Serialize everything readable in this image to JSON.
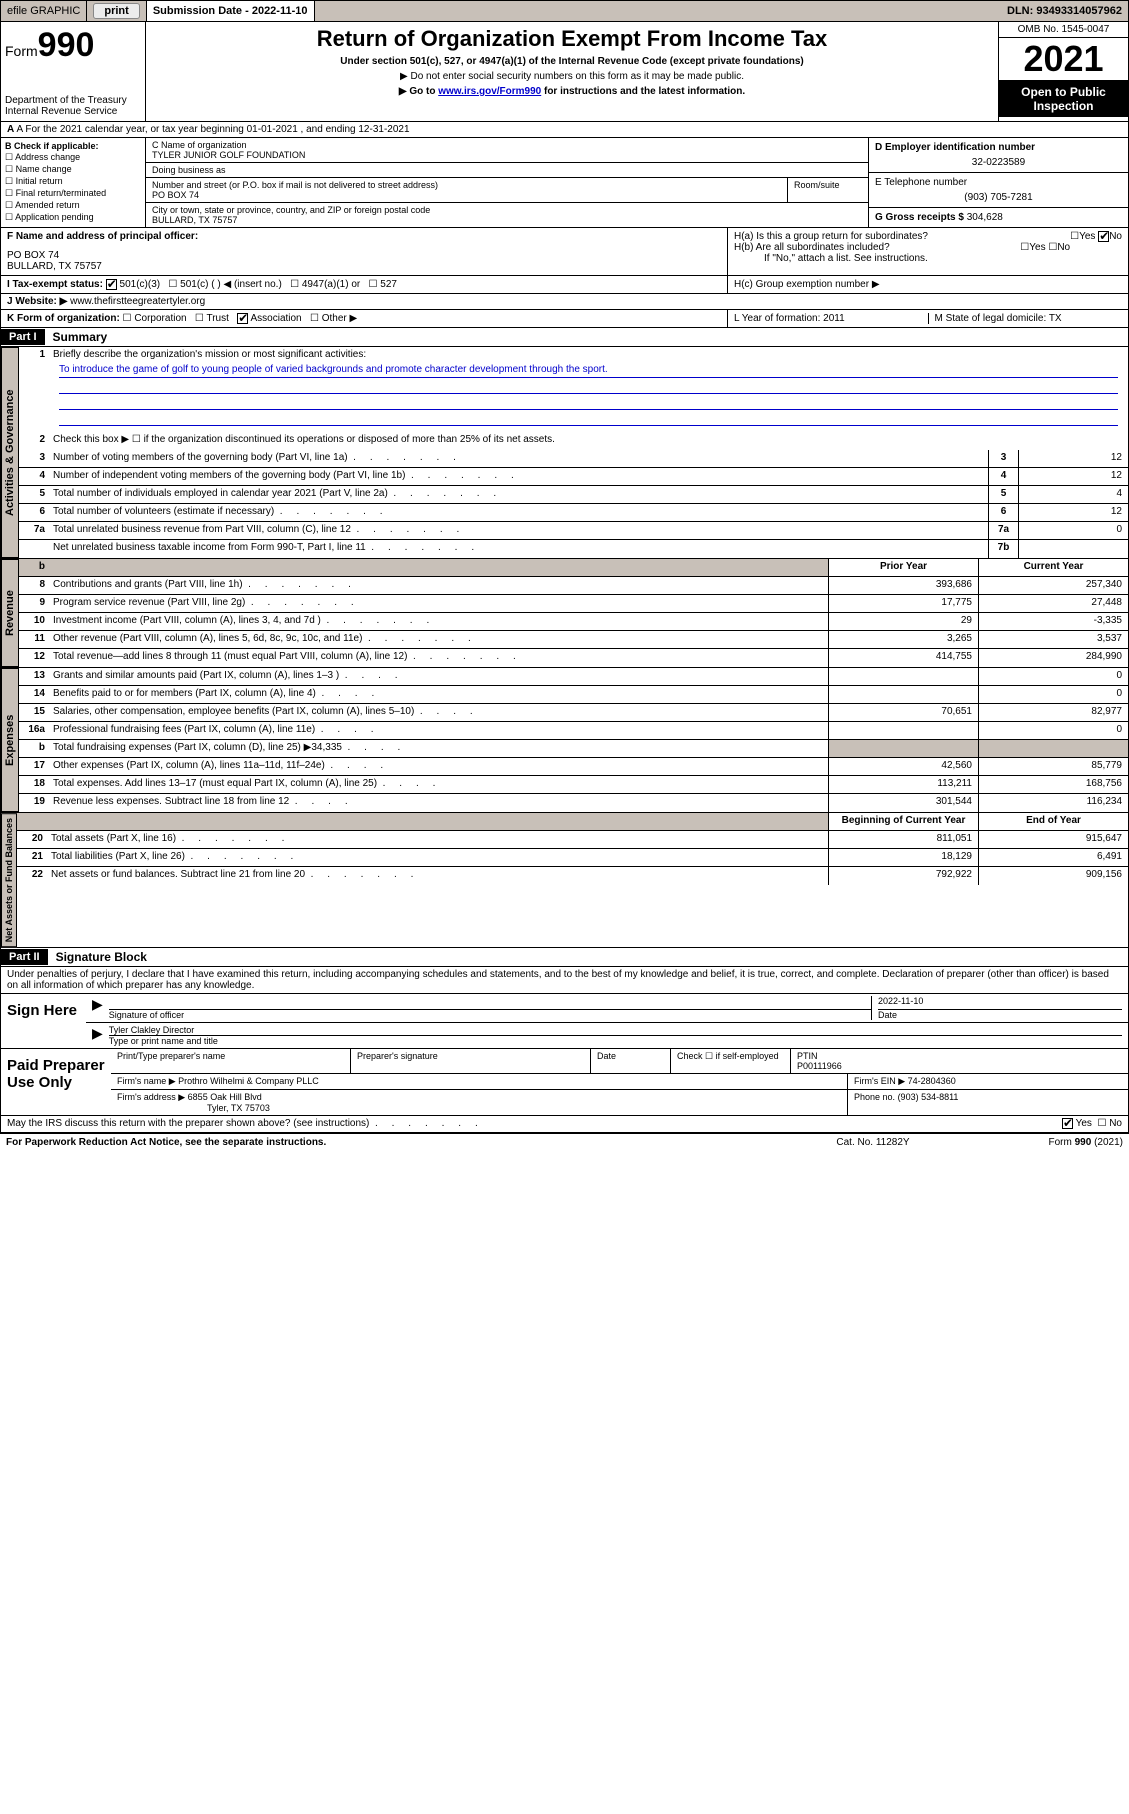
{
  "topbar": {
    "efile": "efile GRAPHIC",
    "print": "print",
    "submission_label": "Submission Date - 2022-11-10",
    "dln": "DLN: 93493314057962"
  },
  "header": {
    "form_label": "Form",
    "form_number": "990",
    "dept": "Department of the Treasury",
    "irs": "Internal Revenue Service",
    "title": "Return of Organization Exempt From Income Tax",
    "subtitle": "Under section 501(c), 527, or 4947(a)(1) of the Internal Revenue Code (except private foundations)",
    "note1": "▶ Do not enter social security numbers on this form as it may be made public.",
    "note2_pre": "▶ Go to ",
    "note2_link": "www.irs.gov/Form990",
    "note2_post": " for instructions and the latest information.",
    "omb": "OMB No. 1545-0047",
    "year": "2021",
    "open": "Open to Public Inspection"
  },
  "row_a": "A For the 2021 calendar year, or tax year beginning 01-01-2021   , and ending 12-31-2021",
  "section_b": {
    "label": "B Check if applicable:",
    "items": [
      "Address change",
      "Name change",
      "Initial return",
      "Final return/terminated",
      "Amended return",
      "Application pending"
    ]
  },
  "section_c": {
    "name_label": "C Name of organization",
    "name": "TYLER JUNIOR GOLF FOUNDATION",
    "dba_label": "Doing business as",
    "dba": "",
    "addr_label": "Number and street (or P.O. box if mail is not delivered to street address)",
    "addr": "PO BOX 74",
    "room_label": "Room/suite",
    "city_label": "City or town, state or province, country, and ZIP or foreign postal code",
    "city": "BULLARD, TX  75757"
  },
  "section_d": {
    "label": "D Employer identification number",
    "value": "32-0223589"
  },
  "section_e": {
    "label": "E Telephone number",
    "value": "(903) 705-7281"
  },
  "section_g": {
    "label": "G Gross receipts $",
    "value": "304,628"
  },
  "section_f": {
    "label": "F  Name and address of principal officer:",
    "addr1": "PO BOX 74",
    "addr2": "BULLARD, TX  75757"
  },
  "section_h": {
    "a": "H(a)  Is this a group return for subordinates?",
    "b": "H(b)  Are all subordinates included?",
    "b_note": "If \"No,\" attach a list. See instructions.",
    "c": "H(c)  Group exemption number ▶",
    "yes": "Yes",
    "no": "No"
  },
  "section_i": {
    "label": "I   Tax-exempt status:",
    "opts": [
      "501(c)(3)",
      "501(c) (   ) ◀ (insert no.)",
      "4947(a)(1) or",
      "527"
    ]
  },
  "section_j": {
    "label": "J   Website: ▶",
    "value": " www.thefirstteegreatertyler.org"
  },
  "section_k": {
    "label": "K Form of organization:",
    "opts": [
      "Corporation",
      "Trust",
      "Association",
      "Other ▶"
    ]
  },
  "section_l": {
    "label": "L Year of formation: 2011"
  },
  "section_m": {
    "label": "M State of legal domicile: TX"
  },
  "part1": {
    "hdr": "Part I",
    "title": "Summary",
    "tab_gov": "Activities & Governance",
    "tab_rev": "Revenue",
    "tab_exp": "Expenses",
    "tab_net": "Net Assets or Fund Balances",
    "l1_label": "Briefly describe the organization's mission or most significant activities:",
    "l1_text": "To introduce the game of golf to young people of varied backgrounds and promote character development through the sport.",
    "l2": "Check this box ▶ ☐  if the organization discontinued its operations or disposed of more than 25% of its net assets.",
    "lines_gov": [
      {
        "n": "3",
        "d": "Number of voting members of the governing body (Part VI, line 1a)",
        "box": "3",
        "v": "12"
      },
      {
        "n": "4",
        "d": "Number of independent voting members of the governing body (Part VI, line 1b)",
        "box": "4",
        "v": "12"
      },
      {
        "n": "5",
        "d": "Total number of individuals employed in calendar year 2021 (Part V, line 2a)",
        "box": "5",
        "v": "4"
      },
      {
        "n": "6",
        "d": "Total number of volunteers (estimate if necessary)",
        "box": "6",
        "v": "12"
      },
      {
        "n": "7a",
        "d": "Total unrelated business revenue from Part VIII, column (C), line 12",
        "box": "7a",
        "v": "0"
      },
      {
        "n": "",
        "d": "Net unrelated business taxable income from Form 990-T, Part I, line 11",
        "box": "7b",
        "v": ""
      }
    ],
    "col_prior": "Prior Year",
    "col_current": "Current Year",
    "col_begin": "Beginning of Current Year",
    "col_end": "End of Year",
    "lines_rev": [
      {
        "n": "8",
        "d": "Contributions and grants (Part VIII, line 1h)",
        "p": "393,686",
        "c": "257,340"
      },
      {
        "n": "9",
        "d": "Program service revenue (Part VIII, line 2g)",
        "p": "17,775",
        "c": "27,448"
      },
      {
        "n": "10",
        "d": "Investment income (Part VIII, column (A), lines 3, 4, and 7d )",
        "p": "29",
        "c": "-3,335"
      },
      {
        "n": "11",
        "d": "Other revenue (Part VIII, column (A), lines 5, 6d, 8c, 9c, 10c, and 11e)",
        "p": "3,265",
        "c": "3,537"
      },
      {
        "n": "12",
        "d": "Total revenue—add lines 8 through 11 (must equal Part VIII, column (A), line 12)",
        "p": "414,755",
        "c": "284,990"
      }
    ],
    "lines_exp": [
      {
        "n": "13",
        "d": "Grants and similar amounts paid (Part IX, column (A), lines 1–3 )",
        "p": "",
        "c": "0"
      },
      {
        "n": "14",
        "d": "Benefits paid to or for members (Part IX, column (A), line 4)",
        "p": "",
        "c": "0"
      },
      {
        "n": "15",
        "d": "Salaries, other compensation, employee benefits (Part IX, column (A), lines 5–10)",
        "p": "70,651",
        "c": "82,977"
      },
      {
        "n": "16a",
        "d": "Professional fundraising fees (Part IX, column (A), line 11e)",
        "p": "",
        "c": "0"
      },
      {
        "n": "b",
        "d": "Total fundraising expenses (Part IX, column (D), line 25) ▶34,335",
        "p": "shade",
        "c": "shade"
      },
      {
        "n": "17",
        "d": "Other expenses (Part IX, column (A), lines 11a–11d, 11f–24e)",
        "p": "42,560",
        "c": "85,779"
      },
      {
        "n": "18",
        "d": "Total expenses. Add lines 13–17 (must equal Part IX, column (A), line 25)",
        "p": "113,211",
        "c": "168,756"
      },
      {
        "n": "19",
        "d": "Revenue less expenses. Subtract line 18 from line 12",
        "p": "301,544",
        "c": "116,234"
      }
    ],
    "lines_net": [
      {
        "n": "20",
        "d": "Total assets (Part X, line 16)",
        "p": "811,051",
        "c": "915,647"
      },
      {
        "n": "21",
        "d": "Total liabilities (Part X, line 26)",
        "p": "18,129",
        "c": "6,491"
      },
      {
        "n": "22",
        "d": "Net assets or fund balances. Subtract line 21 from line 20",
        "p": "792,922",
        "c": "909,156"
      }
    ]
  },
  "part2": {
    "hdr": "Part II",
    "title": "Signature Block",
    "perjury": "Under penalties of perjury, I declare that I have examined this return, including accompanying schedules and statements, and to the best of my knowledge and belief, it is true, correct, and complete. Declaration of preparer (other than officer) is based on all information of which preparer has any knowledge.",
    "sign_here": "Sign Here",
    "sig_officer": "Signature of officer",
    "sig_date_val": "2022-11-10",
    "sig_date": "Date",
    "sig_name": "Tyler Clakley  Director",
    "sig_name_label": "Type or print name and title",
    "paid": "Paid Preparer Use Only",
    "prep_name_label": "Print/Type preparer's name",
    "prep_sig_label": "Preparer's signature",
    "prep_date_label": "Date",
    "prep_check": "Check ☐ if self-employed",
    "ptin_label": "PTIN",
    "ptin": "P00111966",
    "firm_name_label": "Firm's name    ▶",
    "firm_name": "Prothro Wilhelmi & Company PLLC",
    "firm_ein_label": "Firm's EIN ▶",
    "firm_ein": "74-2804360",
    "firm_addr_label": "Firm's address ▶",
    "firm_addr1": "6855 Oak Hill Blvd",
    "firm_addr2": "Tyler, TX  75703",
    "phone_label": "Phone no.",
    "phone": "(903) 534-8811",
    "may_irs": "May the IRS discuss this return with the preparer shown above? (see instructions)"
  },
  "footer": {
    "pra": "For Paperwork Reduction Act Notice, see the separate instructions.",
    "cat": "Cat. No. 11282Y",
    "form": "Form 990 (2021)"
  }
}
